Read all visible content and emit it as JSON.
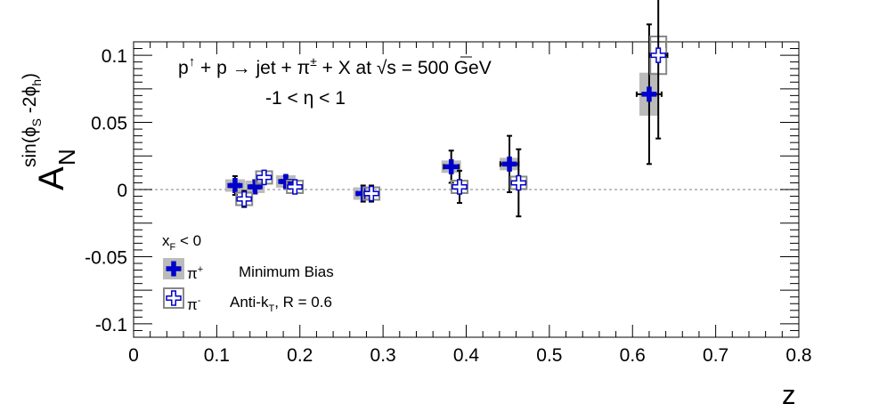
{
  "chart_data": {
    "type": "scatter",
    "title_line1": "p",
    "title_arrow": "↑",
    "title_line1_rest": " + p → jet + π",
    "title_pm": "±",
    "title_line1_tail": " + X at  ",
    "title_sqrt": "√",
    "title_s": "s = 500 GeV",
    "title_line2": "-1 < η < 1",
    "xlabel": "z",
    "ylabel_main": "A",
    "ylabel_sub": "N",
    "ylabel_sup": "sin(ϕ",
    "ylabel_sup_s": "S",
    "ylabel_sup_mid": " -2ϕ",
    "ylabel_sup_h": "h",
    "ylabel_sup_close": ")",
    "xlim": [
      0,
      0.8
    ],
    "ylim": [
      -0.11,
      0.11
    ],
    "x_ticks": [
      "0",
      "0.1",
      "0.2",
      "0.3",
      "0.4",
      "0.5",
      "0.6",
      "0.7",
      "0.8"
    ],
    "y_ticks": [
      "0.1",
      "0.05",
      "0",
      "-0.05",
      "-0.1"
    ],
    "y_tick_values": [
      0.1,
      0.05,
      0,
      -0.05,
      -0.1
    ],
    "x_tick_values": [
      0,
      0.1,
      0.2,
      0.3,
      0.4,
      0.5,
      0.6,
      0.7,
      0.8
    ],
    "zero_line": true,
    "legend": {
      "header": "x",
      "header_sub": "F",
      "header_rest": " < 0",
      "plus_label": "π",
      "plus_sup": "+",
      "minus_label": "π",
      "minus_sup": "-",
      "note1": "Minimum Bias",
      "note2_a": "Anti-k",
      "note2_sub": "T",
      "note2_b": ", R = 0.6"
    },
    "colors": {
      "pi_plus": "#0000cc",
      "pi_minus": "#0000cc",
      "sys_box": "#bbbbbb",
      "sys_outline": "#888888"
    },
    "series": [
      {
        "name": "π+",
        "points": [
          {
            "x": 0.122,
            "y": 0.003,
            "yerr": 0.007,
            "xerr": 0.005,
            "sys": 0.002
          },
          {
            "x": 0.146,
            "y": 0.002,
            "yerr": 0.005,
            "xerr": 0.005,
            "sys": 0.002
          },
          {
            "x": 0.183,
            "y": 0.006,
            "yerr": 0.004,
            "xerr": 0.005,
            "sys": 0.002
          },
          {
            "x": 0.276,
            "y": -0.003,
            "yerr": 0.006,
            "xerr": 0.007,
            "sys": 0.002
          },
          {
            "x": 0.382,
            "y": 0.017,
            "yerr": 0.012,
            "xerr": 0.009,
            "sys": 0.003
          },
          {
            "x": 0.452,
            "y": 0.019,
            "yerr": 0.021,
            "xerr": 0.011,
            "sys": 0.004
          },
          {
            "x": 0.62,
            "y": 0.071,
            "yerr": 0.052,
            "xerr": 0.015,
            "sys": 0.016
          }
        ]
      },
      {
        "name": "π-",
        "points": [
          {
            "x": 0.133,
            "y": -0.007,
            "yerr": 0.006,
            "xerr": 0.004,
            "sys": 0.002
          },
          {
            "x": 0.157,
            "y": 0.009,
            "yerr": 0.004,
            "xerr": 0.004,
            "sys": 0.002
          },
          {
            "x": 0.194,
            "y": 0.002,
            "yerr": 0.004,
            "xerr": 0.004,
            "sys": 0.002
          },
          {
            "x": 0.286,
            "y": -0.003,
            "yerr": 0.006,
            "xerr": 0.005,
            "sys": 0.002
          },
          {
            "x": 0.392,
            "y": 0.002,
            "yerr": 0.012,
            "xerr": 0.006,
            "sys": 0.002
          },
          {
            "x": 0.463,
            "y": 0.005,
            "yerr": 0.025,
            "xerr": 0.008,
            "sys": 0.002
          },
          {
            "x": 0.631,
            "y": 0.1,
            "yerr": 0.062,
            "xerr": 0.011,
            "sys": 0.014
          }
        ]
      }
    ]
  }
}
